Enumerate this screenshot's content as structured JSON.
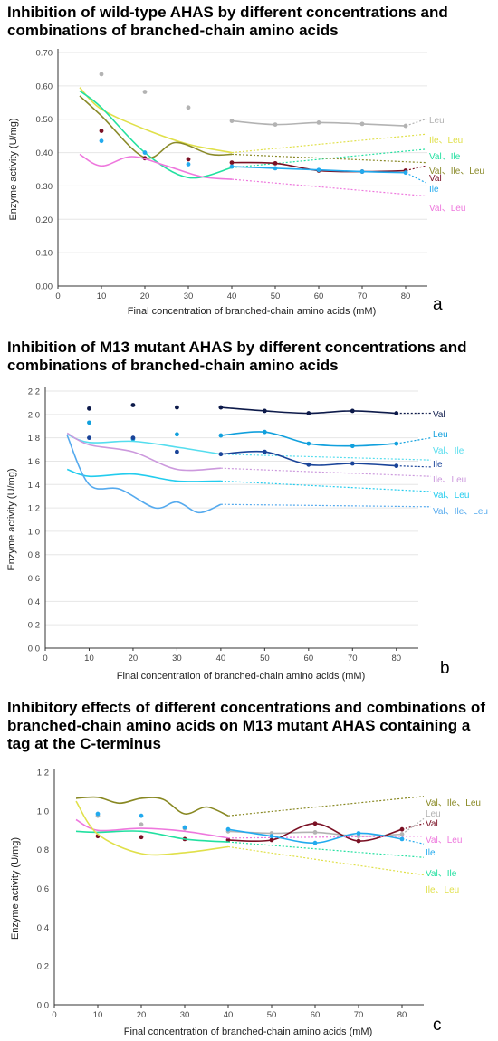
{
  "chart_data": [
    {
      "type": "line",
      "panel_letter": "a",
      "title": "Inhibition of wild-type AHAS by different concentrations and combinations of branched-chain amino acids",
      "xlabel": "Final concentration of branched-chain amino acids (mM)",
      "ylabel": "Enzyme activity (U/mg)",
      "xlim": [
        0,
        85
      ],
      "ylim": [
        0,
        0.7
      ],
      "x_ticks": [
        "0",
        "10",
        "20",
        "30",
        "40",
        "50",
        "60",
        "70",
        "80"
      ],
      "y_ticks": [
        "0.00",
        "0.10",
        "0.20",
        "0.30",
        "0.40",
        "0.50",
        "0.60",
        "0.70"
      ],
      "grid": "horizontal",
      "series": [
        {
          "name": "Leu",
          "color": "#b3b3b3",
          "fit_x": [],
          "fit_y": [],
          "data_x": [
            10,
            20,
            30,
            40,
            50,
            60,
            70,
            80
          ],
          "data_y": [
            0.635,
            0.582,
            0.535,
            0.495,
            0.484,
            0.49,
            0.486,
            0.48
          ],
          "data_line": true,
          "extrap_end": 0.5
        },
        {
          "name": "Ile、Leu",
          "color": "#e0e04a",
          "fit_x": [
            5,
            10,
            20,
            30,
            40
          ],
          "fit_y": [
            0.595,
            0.53,
            0.47,
            0.425,
            0.4
          ],
          "data_x": [],
          "data_y": [],
          "data_line": false,
          "extrap_end": 0.455
        },
        {
          "name": "Val、Ile",
          "color": "#22e0a0",
          "fit_x": [
            5,
            10,
            20,
            30,
            40
          ],
          "fit_y": [
            0.585,
            0.535,
            0.4,
            0.325,
            0.355
          ],
          "data_x": [],
          "data_y": [],
          "data_line": false,
          "extrap_end": 0.41
        },
        {
          "name": "Val、Ile、Leu",
          "color": "#8a8a2a",
          "fit_x": [
            5,
            10,
            20,
            27,
            35,
            40
          ],
          "fit_y": [
            0.57,
            0.51,
            0.385,
            0.43,
            0.395,
            0.395
          ],
          "data_x": [],
          "data_y": [],
          "data_line": false,
          "extrap_end": 0.37
        },
        {
          "name": "Val",
          "color": "#7a1024",
          "fit_x": [],
          "fit_y": [],
          "data_x": [
            10,
            20,
            30,
            40,
            50,
            60,
            70,
            80
          ],
          "data_y": [
            0.465,
            0.383,
            0.38,
            0.37,
            0.368,
            0.346,
            0.343,
            0.346
          ],
          "data_line": true,
          "extrap_end": 0.36
        },
        {
          "name": "Ile",
          "color": "#22aaee",
          "fit_x": [],
          "fit_y": [],
          "data_x": [
            10,
            20,
            30,
            40,
            50,
            60,
            70,
            80
          ],
          "data_y": [
            0.435,
            0.4,
            0.365,
            0.358,
            0.353,
            0.348,
            0.343,
            0.34
          ],
          "data_line": true,
          "extrap_end": 0.31
        },
        {
          "name": "Val、Leu",
          "color": "#ee77dd",
          "fit_x": [
            5,
            10,
            17,
            25,
            33,
            40
          ],
          "fit_y": [
            0.395,
            0.36,
            0.388,
            0.36,
            0.328,
            0.32
          ],
          "data_x": [],
          "data_y": [],
          "data_line": false,
          "extrap_end": 0.27
        }
      ]
    },
    {
      "type": "line",
      "panel_letter": "b",
      "title": "Inhibition of M13 mutant AHAS by different concentrations and combinations of branched-chain amino acids",
      "xlabel": "Final concentration of branched-chain amino acids (mM)",
      "ylabel": "Enzyme activity (U/mg)",
      "xlim": [
        0,
        85
      ],
      "ylim": [
        0,
        2.2
      ],
      "x_ticks": [
        "0",
        "10",
        "20",
        "30",
        "40",
        "50",
        "60",
        "70",
        "80"
      ],
      "y_ticks": [
        "0.0",
        "0.2",
        "0.4",
        "0.6",
        "0.8",
        "1.0",
        "1.2",
        "1.4",
        "1.6",
        "1.8",
        "2.0",
        "2.2"
      ],
      "grid": "horizontal",
      "series": [
        {
          "name": "Val",
          "color": "#0d1a4a",
          "fit_x": [],
          "fit_y": [],
          "data_x": [
            10,
            20,
            30,
            40,
            50,
            60,
            70,
            80
          ],
          "data_y": [
            2.05,
            2.08,
            2.06,
            2.06,
            2.03,
            2.01,
            2.03,
            2.01
          ],
          "data_line": true,
          "extrap_end": 2.01
        },
        {
          "name": "Leu",
          "color": "#11a0dd",
          "fit_x": [],
          "fit_y": [],
          "data_x": [
            10,
            20,
            30,
            40,
            50,
            60,
            70,
            80
          ],
          "data_y": [
            1.93,
            1.79,
            1.83,
            1.82,
            1.85,
            1.75,
            1.73,
            1.75
          ],
          "data_line": true,
          "extrap_end": 1.8
        },
        {
          "name": "Val、Ile",
          "color": "#55ddee",
          "fit_x": [
            5,
            10,
            20,
            30,
            40
          ],
          "fit_y": [
            1.83,
            1.76,
            1.77,
            1.72,
            1.66
          ],
          "data_x": [],
          "data_y": [],
          "data_line": false,
          "extrap_end": 1.61
        },
        {
          "name": "Ile",
          "color": "#1a4499",
          "fit_x": [],
          "fit_y": [],
          "data_x": [
            10,
            20,
            30,
            40,
            50,
            60,
            70,
            80
          ],
          "data_y": [
            1.8,
            1.8,
            1.68,
            1.66,
            1.68,
            1.57,
            1.58,
            1.56
          ],
          "data_line": true,
          "extrap_end": 1.55
        },
        {
          "name": "Ile、Leu",
          "color": "#cc99dd",
          "fit_x": [
            5,
            10,
            20,
            30,
            40
          ],
          "fit_y": [
            1.84,
            1.74,
            1.68,
            1.53,
            1.54
          ],
          "data_x": [],
          "data_y": [],
          "data_line": false,
          "extrap_end": 1.47
        },
        {
          "name": "Val、Leu",
          "color": "#22ccee",
          "fit_x": [
            5,
            10,
            20,
            30,
            40
          ],
          "fit_y": [
            1.53,
            1.47,
            1.49,
            1.43,
            1.43
          ],
          "data_x": [],
          "data_y": [],
          "data_line": false,
          "extrap_end": 1.34
        },
        {
          "name": "Val、Ile、Leu",
          "color": "#55aaee",
          "fit_x": [
            5,
            10,
            17,
            25,
            30,
            35,
            40
          ],
          "fit_y": [
            1.82,
            1.4,
            1.36,
            1.2,
            1.25,
            1.16,
            1.23
          ],
          "data_x": [],
          "data_y": [],
          "data_line": false,
          "extrap_end": 1.21
        }
      ]
    },
    {
      "type": "line",
      "panel_letter": "c",
      "title": "Inhibitory effects of different concentrations and combinations of branched-chain amino acids on M13 mutant AHAS containing a tag at the C-terminus",
      "xlabel": "Final concentration of branched-chain amino acids (mM)",
      "ylabel": "Enzyme activity (U/mg)",
      "xlim": [
        0,
        85
      ],
      "ylim": [
        0,
        1.2
      ],
      "x_ticks": [
        "0",
        "10",
        "20",
        "30",
        "40",
        "50",
        "60",
        "70",
        "80"
      ],
      "y_ticks": [
        "0.0",
        "0.2",
        "0.4",
        "0.6",
        "0.8",
        "1.0",
        "1.2"
      ],
      "grid": "none",
      "series": [
        {
          "name": "Val、Ile、Leu",
          "color": "#888822",
          "fit_x": [
            5,
            10,
            15,
            20,
            25,
            30,
            35,
            40
          ],
          "fit_y": [
            1.065,
            1.07,
            1.04,
            1.065,
            1.06,
            0.985,
            1.02,
            0.975
          ],
          "data_x": [],
          "data_y": [],
          "data_line": false,
          "extrap_end": 1.075
        },
        {
          "name": "Leu",
          "color": "#b3b3b3",
          "fit_x": [],
          "fit_y": [],
          "data_x": [
            10,
            20,
            30,
            40,
            50,
            60,
            70,
            80
          ],
          "data_y": [
            0.975,
            0.93,
            0.91,
            0.895,
            0.885,
            0.89,
            0.87,
            0.88
          ],
          "data_line": true,
          "extrap_end": 0.96
        },
        {
          "name": "Val",
          "color": "#7a1024",
          "fit_x": [],
          "fit_y": [],
          "data_x": [
            10,
            20,
            30,
            40,
            50,
            60,
            70,
            80
          ],
          "data_y": [
            0.87,
            0.865,
            0.855,
            0.85,
            0.85,
            0.935,
            0.845,
            0.905
          ],
          "data_line": true,
          "extrap_end": 0.935
        },
        {
          "name": "Val、Leu",
          "color": "#ee77dd",
          "fit_x": [
            5,
            10,
            20,
            30,
            40
          ],
          "fit_y": [
            0.955,
            0.9,
            0.91,
            0.895,
            0.86
          ],
          "data_x": [],
          "data_y": [],
          "data_line": false,
          "extrap_end": 0.87
        },
        {
          "name": "Ile",
          "color": "#22aaee",
          "fit_x": [],
          "fit_y": [],
          "data_x": [
            10,
            20,
            30,
            40,
            50,
            60,
            70,
            80
          ],
          "data_y": [
            0.985,
            0.975,
            0.915,
            0.905,
            0.87,
            0.835,
            0.885,
            0.855
          ],
          "data_line": true,
          "extrap_end": 0.83
        },
        {
          "name": "Val、Ile",
          "color": "#22e0a0",
          "fit_x": [
            5,
            10,
            20,
            30,
            40
          ],
          "fit_y": [
            0.895,
            0.89,
            0.895,
            0.855,
            0.84
          ],
          "data_x": [],
          "data_y": [],
          "data_line": false,
          "extrap_end": 0.76
        },
        {
          "name": "Ile、Leu",
          "color": "#e0e04a",
          "fit_x": [
            5,
            10,
            20,
            30,
            40
          ],
          "fit_y": [
            1.05,
            0.88,
            0.78,
            0.785,
            0.815
          ],
          "data_x": [],
          "data_y": [],
          "data_line": false,
          "extrap_end": 0.67
        }
      ]
    }
  ]
}
